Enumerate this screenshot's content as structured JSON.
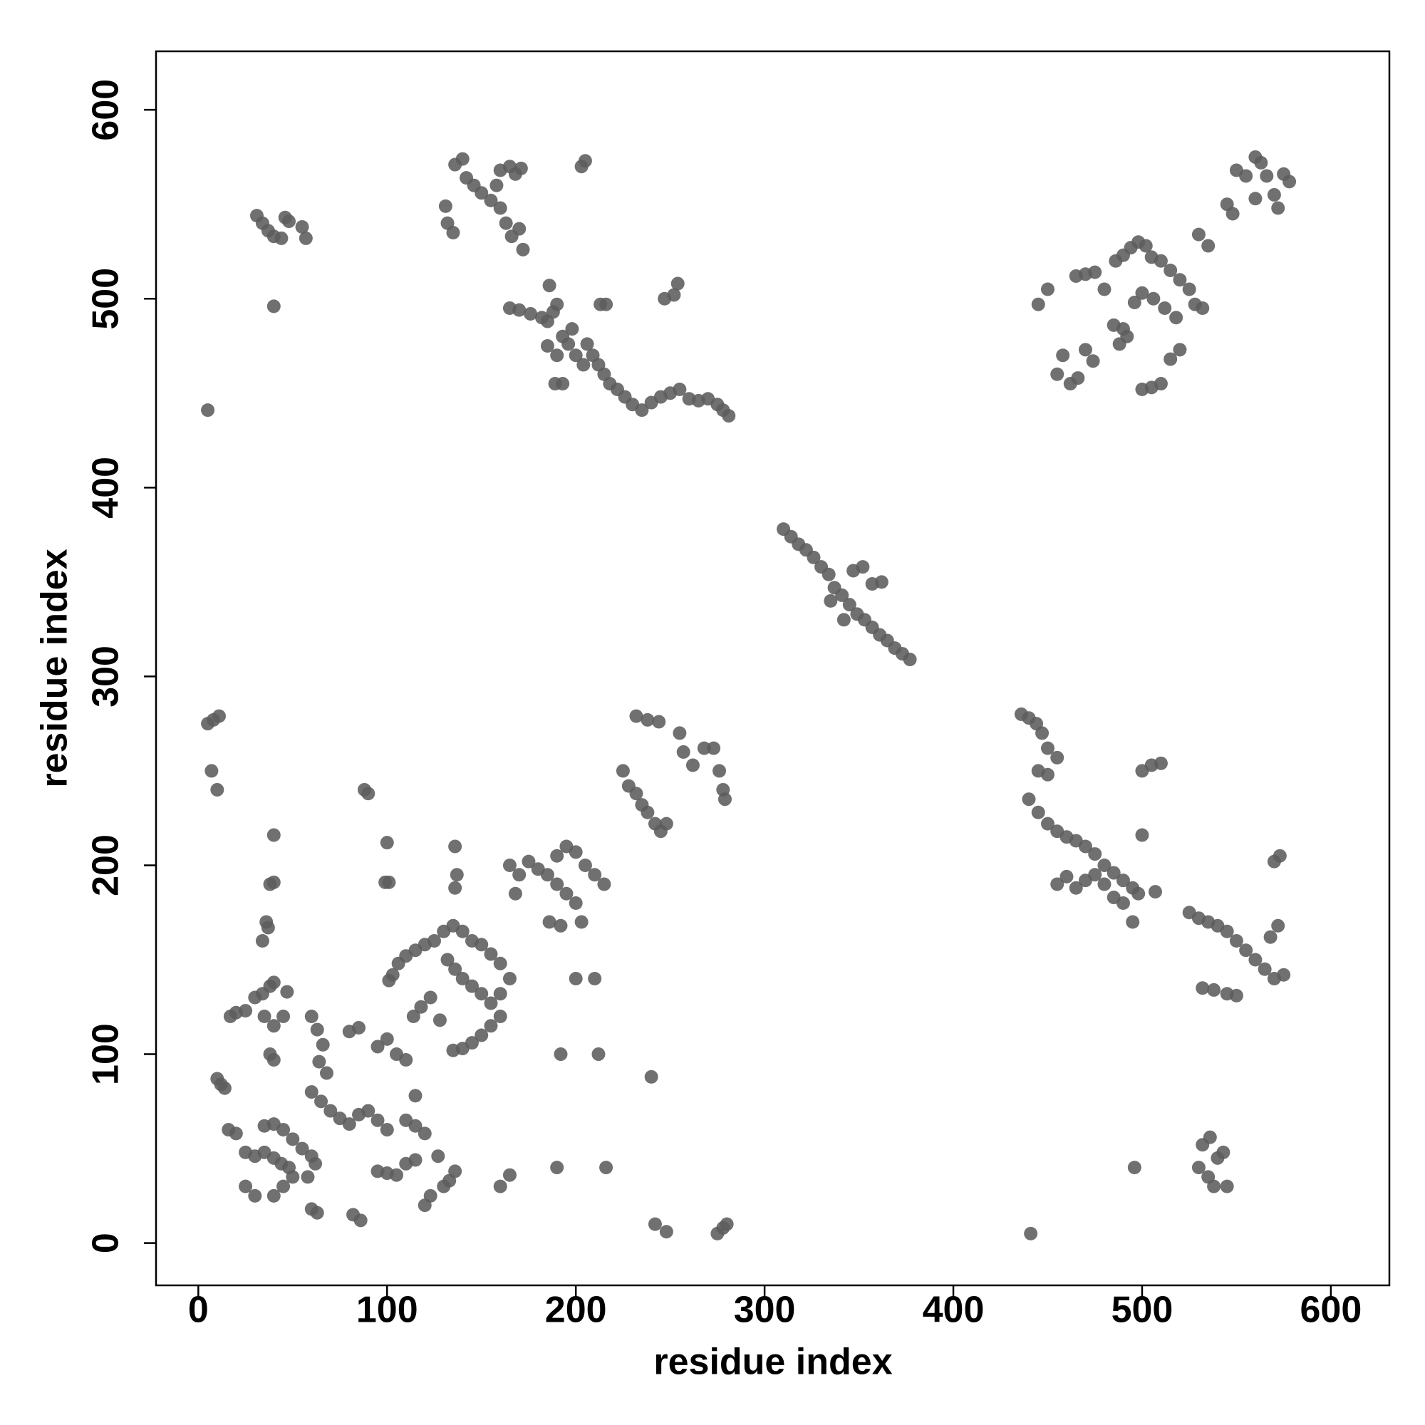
{
  "chart_data": {
    "type": "scatter",
    "xlabel": "residue index",
    "ylabel": "residue index",
    "color": "#5c5c5c",
    "xlim": [
      -22.4,
      631
    ],
    "ylim": [
      -22.4,
      631
    ],
    "xticks": [
      0,
      100,
      200,
      300,
      400,
      500,
      600
    ],
    "yticks": [
      0,
      100,
      200,
      300,
      400,
      500,
      600
    ],
    "x": [
      31,
      34,
      37,
      40,
      44,
      48,
      46,
      55,
      57,
      40,
      5,
      131,
      132,
      135,
      136,
      140,
      142,
      146,
      150,
      155,
      160,
      163,
      166,
      170,
      172,
      165,
      168,
      171,
      160,
      158,
      203,
      205,
      165,
      170,
      176,
      182,
      185,
      188,
      190,
      186,
      193,
      196,
      198,
      200,
      204,
      206,
      209,
      212,
      215,
      218,
      222,
      226,
      230,
      235,
      240,
      245,
      250,
      255,
      260,
      265,
      270,
      275,
      278,
      281,
      213,
      216,
      247,
      252,
      254,
      189,
      193,
      185,
      190,
      445,
      450,
      455,
      458,
      462,
      466,
      470,
      474,
      465,
      470,
      475,
      480,
      485,
      490,
      488,
      492,
      486,
      490,
      494,
      498,
      502,
      505,
      510,
      515,
      520,
      525,
      528,
      532,
      518,
      512,
      506,
      500,
      496,
      500,
      505,
      510,
      515,
      520,
      530,
      535,
      545,
      548,
      550,
      555,
      560,
      563,
      566,
      570,
      572,
      575,
      578,
      560,
      310,
      314,
      318,
      322,
      326,
      330,
      334,
      337,
      341,
      345,
      349,
      353,
      357,
      361,
      365,
      369,
      373,
      377,
      347,
      352,
      357,
      362,
      335,
      342,
      436,
      440,
      444,
      447,
      450,
      455,
      445,
      450,
      440,
      445,
      450,
      455,
      460,
      465,
      470,
      475,
      480,
      485,
      490,
      495,
      498,
      490,
      485,
      480,
      475,
      470,
      465,
      460,
      455,
      495,
      500,
      500,
      505,
      510,
      496,
      441,
      507,
      525,
      530,
      535,
      540,
      545,
      550,
      555,
      560,
      565,
      570,
      575,
      568,
      572,
      570,
      573,
      532,
      538,
      545,
      550,
      530,
      532,
      535,
      538,
      540,
      543,
      545,
      536,
      5,
      8,
      11,
      7,
      10,
      88,
      90,
      40,
      100,
      38,
      40,
      99,
      101,
      34,
      37,
      36,
      30,
      34,
      38,
      40,
      35,
      40,
      45,
      47,
      38,
      40,
      17,
      20,
      25,
      10,
      12,
      14,
      16,
      20,
      25,
      30,
      35,
      40,
      44,
      48,
      50,
      45,
      40,
      25,
      30,
      35,
      40,
      45,
      50,
      55,
      60,
      62,
      58,
      60,
      63,
      82,
      86,
      60,
      63,
      66,
      64,
      68,
      60,
      65,
      70,
      75,
      80,
      85,
      90,
      95,
      100,
      80,
      85,
      95,
      100,
      105,
      110,
      115,
      110,
      115,
      120,
      95,
      100,
      105,
      110,
      115,
      120,
      123,
      127,
      130,
      133,
      136,
      101,
      103,
      106,
      110,
      115,
      120,
      125,
      130,
      135,
      140,
      145,
      150,
      155,
      160,
      165,
      160,
      155,
      150,
      145,
      140,
      136,
      132,
      135,
      140,
      145,
      150,
      155,
      160,
      114,
      118,
      123,
      128,
      136,
      137,
      136,
      160,
      165,
      168,
      170,
      165,
      175,
      180,
      185,
      190,
      195,
      200,
      203,
      186,
      192,
      190,
      195,
      200,
      205,
      210,
      215,
      210,
      200,
      192,
      212,
      190,
      216,
      225,
      228,
      232,
      235,
      238,
      242,
      245,
      248,
      240,
      242,
      248,
      232,
      238,
      244,
      255,
      257,
      262,
      268,
      273,
      276,
      278,
      279,
      275,
      278,
      280
    ],
    "values": [
      544,
      540,
      536,
      533,
      532,
      541,
      543,
      538,
      532,
      496,
      441,
      549,
      540,
      535,
      571,
      574,
      564,
      560,
      556,
      552,
      548,
      540,
      533,
      537,
      526,
      570,
      566,
      569,
      568,
      560,
      570,
      573,
      495,
      494,
      492,
      490,
      488,
      493,
      497,
      507,
      480,
      476,
      484,
      470,
      465,
      476,
      470,
      465,
      460,
      455,
      452,
      448,
      444,
      441,
      445,
      448,
      450,
      452,
      447,
      446,
      447,
      444,
      441,
      438,
      497,
      497,
      500,
      502,
      508,
      455,
      455,
      475,
      470,
      497,
      505,
      460,
      470,
      455,
      458,
      473,
      467,
      512,
      513,
      514,
      505,
      486,
      484,
      476,
      480,
      520,
      523,
      527,
      530,
      528,
      522,
      520,
      515,
      510,
      505,
      497,
      495,
      490,
      495,
      500,
      503,
      498,
      452,
      453,
      455,
      468,
      473,
      534,
      528,
      550,
      545,
      568,
      565,
      575,
      572,
      565,
      555,
      548,
      566,
      562,
      553,
      378,
      374,
      370,
      367,
      363,
      358,
      354,
      347,
      343,
      338,
      333,
      330,
      326,
      322,
      319,
      315,
      312,
      309,
      356,
      358,
      349,
      350,
      340,
      330,
      280,
      278,
      275,
      270,
      262,
      257,
      250,
      248,
      235,
      228,
      222,
      218,
      215,
      213,
      210,
      206,
      200,
      196,
      192,
      188,
      185,
      180,
      183,
      190,
      195,
      192,
      188,
      194,
      190,
      170,
      216,
      250,
      253,
      254,
      40,
      5,
      186,
      175,
      172,
      170,
      168,
      165,
      160,
      155,
      150,
      145,
      140,
      142,
      162,
      168,
      202,
      205,
      135,
      134,
      132,
      131,
      40,
      52,
      35,
      30,
      45,
      48,
      30,
      56,
      275,
      277,
      279,
      250,
      240,
      240,
      238,
      216,
      212,
      190,
      191,
      191,
      191,
      160,
      167,
      170,
      130,
      132,
      136,
      138,
      120,
      115,
      120,
      133,
      100,
      97,
      120,
      122,
      123,
      87,
      84,
      82,
      60,
      58,
      48,
      46,
      48,
      45,
      42,
      40,
      35,
      30,
      25,
      30,
      25,
      62,
      63,
      60,
      55,
      50,
      46,
      42,
      35,
      18,
      16,
      15,
      12,
      120,
      113,
      105,
      96,
      90,
      80,
      75,
      70,
      66,
      63,
      68,
      70,
      65,
      60,
      112,
      114,
      104,
      108,
      100,
      97,
      78,
      65,
      62,
      58,
      38,
      37,
      36,
      42,
      44,
      20,
      25,
      46,
      30,
      33,
      38,
      139,
      142,
      148,
      152,
      155,
      158,
      160,
      165,
      168,
      165,
      160,
      158,
      153,
      148,
      140,
      132,
      127,
      132,
      136,
      140,
      145,
      150,
      102,
      103,
      106,
      110,
      115,
      120,
      120,
      125,
      130,
      118,
      210,
      195,
      188,
      30,
      36,
      185,
      195,
      200,
      202,
      198,
      195,
      190,
      185,
      180,
      170,
      170,
      168,
      205,
      210,
      207,
      200,
      195,
      190,
      140,
      140,
      100,
      100,
      40,
      40,
      250,
      242,
      238,
      232,
      228,
      222,
      218,
      222,
      88,
      10,
      6,
      279,
      277,
      276,
      270,
      260,
      253,
      262,
      262,
      250,
      240,
      235,
      5,
      8,
      10
    ]
  }
}
